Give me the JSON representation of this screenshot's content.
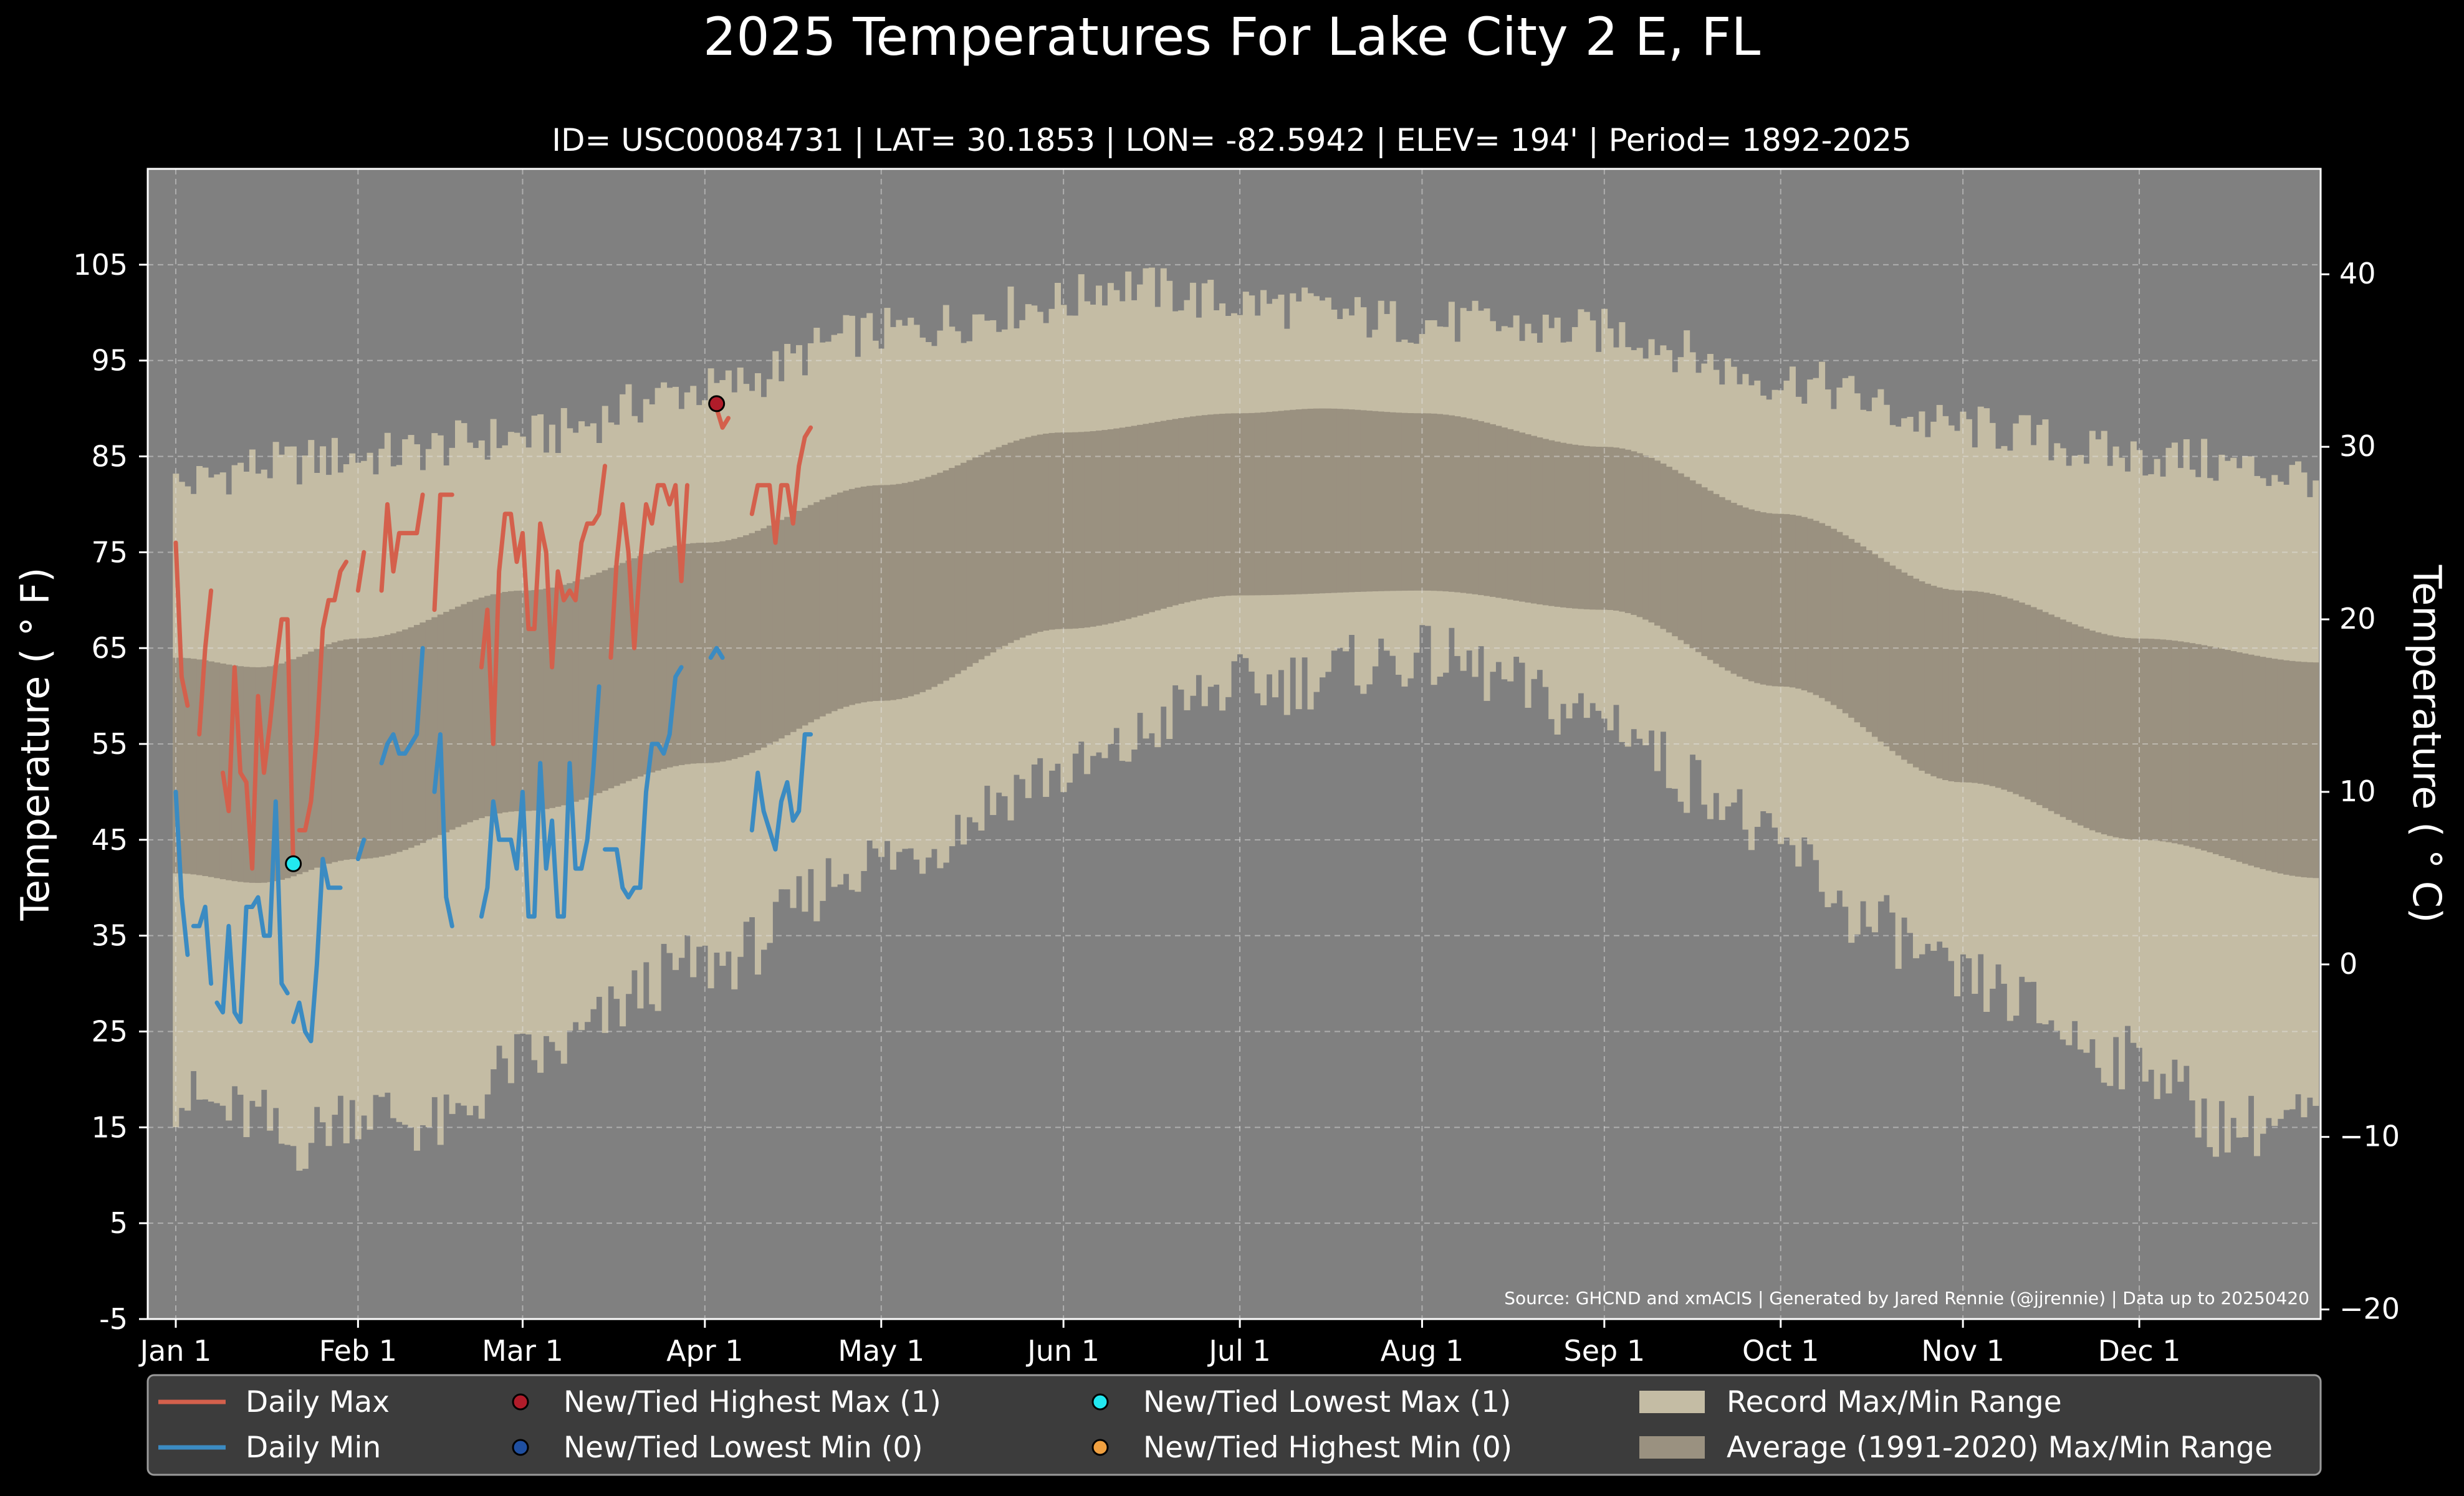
{
  "title": "2025 Temperatures For Lake City 2 E, FL",
  "subtitle": "ID= USC00084731 | LAT= 30.1853 | LON= -82.5942 | ELEV= 194' | Period= 1892-2025",
  "source_note": "Source: GHCND and xmACIS | Generated by Jared Rennie (@jjrennie) | Data up to 20250420",
  "colors": {
    "background": "#000000",
    "plot_bg": "#808080",
    "record_band": "#c4bca4",
    "normal_band": "#9a9180",
    "daily_max": "#d4604c",
    "daily_min": "#3b8bc2",
    "highest_max_marker": "#b01c2a",
    "lowest_min_marker": "#1f4fa0",
    "lowest_max_marker": "#22e8f0",
    "highest_min_marker": "#f0a040"
  },
  "chart_data": {
    "type": "line",
    "ylabel_left": "Temperature ($^\\circ$F)",
    "ylabel_right": "Temperature ($^\\circ$C)",
    "ylabel_left_display": "Temperature ( ° F)",
    "ylabel_right_display": "Temperature ( ° C)",
    "ylim_f": [
      -5,
      115
    ],
    "yticks_f": [
      "105",
      "95",
      "85",
      "75",
      "65",
      "55",
      "45",
      "35",
      "25",
      "15",
      "5",
      "-5"
    ],
    "yticks_c": [
      "40",
      "30",
      "20",
      "10",
      "0",
      "−10",
      "−20"
    ],
    "yticks_c_values": [
      40,
      30,
      20,
      10,
      0,
      -10,
      -20
    ],
    "xticks": [
      "Jan 1",
      "Feb 1",
      "Mar 1",
      "Apr 1",
      "May 1",
      "Jun 1",
      "Jul 1",
      "Aug 1",
      "Sep 1",
      "Oct 1",
      "Nov 1",
      "Dec 1"
    ],
    "xtick_days": [
      1,
      32,
      60,
      91,
      121,
      152,
      182,
      213,
      244,
      274,
      305,
      335
    ],
    "grid": true,
    "legend_placement": "bottom",
    "legend": [
      {
        "label": "Daily Max",
        "kind": "line",
        "color": "#d4604c"
      },
      {
        "label": "New/Tied Highest Max (1)",
        "kind": "marker",
        "color": "#b01c2a"
      },
      {
        "label": "New/Tied Lowest Max (1)",
        "kind": "marker",
        "color": "#22e8f0"
      },
      {
        "label": "Record Max/Min Range",
        "kind": "patch",
        "color": "#c4bca4"
      },
      {
        "label": "Daily Min",
        "kind": "line",
        "color": "#3b8bc2"
      },
      {
        "label": "New/Tied Lowest Min (0)",
        "kind": "marker",
        "color": "#1f4fa0"
      },
      {
        "label": "New/Tied Highest Min (0)",
        "kind": "marker",
        "color": "#f0a040"
      },
      {
        "label": "Average (1991-2020) Max/Min Range",
        "kind": "patch",
        "color": "#9a9180"
      }
    ],
    "normal_max_curve": [
      [
        1,
        64
      ],
      [
        15,
        63
      ],
      [
        32,
        66
      ],
      [
        60,
        71
      ],
      [
        91,
        76
      ],
      [
        121,
        82
      ],
      [
        152,
        87.5
      ],
      [
        182,
        89.5
      ],
      [
        196,
        90
      ],
      [
        213,
        89.5
      ],
      [
        244,
        86
      ],
      [
        274,
        79
      ],
      [
        305,
        71
      ],
      [
        335,
        66
      ],
      [
        366,
        63.5
      ]
    ],
    "normal_min_curve": [
      [
        1,
        41.5
      ],
      [
        15,
        40.5
      ],
      [
        32,
        43
      ],
      [
        60,
        48
      ],
      [
        91,
        53
      ],
      [
        121,
        59.5
      ],
      [
        152,
        67
      ],
      [
        182,
        70.5
      ],
      [
        213,
        71
      ],
      [
        244,
        69
      ],
      [
        274,
        61
      ],
      [
        305,
        51
      ],
      [
        335,
        45
      ],
      [
        366,
        41
      ]
    ],
    "record_max_curve": [
      [
        1,
        82
      ],
      [
        15,
        84
      ],
      [
        32,
        85
      ],
      [
        60,
        87
      ],
      [
        91,
        92
      ],
      [
        121,
        98
      ],
      [
        152,
        101
      ],
      [
        160,
        103
      ],
      [
        182,
        101
      ],
      [
        213,
        99
      ],
      [
        244,
        98
      ],
      [
        274,
        93
      ],
      [
        305,
        88
      ],
      [
        335,
        85
      ],
      [
        366,
        83
      ]
    ],
    "record_min_curve": [
      [
        1,
        18
      ],
      [
        15,
        16
      ],
      [
        20,
        13
      ],
      [
        32,
        17
      ],
      [
        46,
        15
      ],
      [
        60,
        22
      ],
      [
        91,
        32
      ],
      [
        121,
        43
      ],
      [
        152,
        52
      ],
      [
        182,
        61
      ],
      [
        213,
        64
      ],
      [
        244,
        58
      ],
      [
        260,
        51
      ],
      [
        274,
        44
      ],
      [
        290,
        36
      ],
      [
        305,
        30
      ],
      [
        335,
        22
      ],
      [
        350,
        15
      ],
      [
        366,
        16
      ]
    ],
    "series": [
      {
        "name": "Daily Max",
        "segments": [
          [
            [
              1,
              76
            ],
            [
              2,
              62
            ],
            [
              3,
              59
            ]
          ],
          [
            [
              5,
              56
            ],
            [
              6,
              65
            ],
            [
              7,
              71
            ]
          ],
          [
            [
              9,
              52
            ],
            [
              10,
              48
            ],
            [
              11,
              63
            ],
            [
              12,
              52
            ],
            [
              13,
              51
            ],
            [
              14,
              42
            ],
            [
              15,
              60
            ],
            [
              16,
              52
            ],
            [
              17,
              57
            ],
            [
              18,
              63
            ],
            [
              19,
              68
            ],
            [
              20,
              68
            ],
            [
              21,
              42
            ]
          ],
          [
            [
              22,
              46
            ],
            [
              23,
              46
            ],
            [
              24,
              49
            ],
            [
              25,
              56
            ],
            [
              26,
              67
            ],
            [
              27,
              70
            ],
            [
              28,
              70
            ],
            [
              29,
              73
            ],
            [
              30,
              74
            ]
          ],
          [
            [
              32,
              71
            ],
            [
              33,
              75
            ]
          ],
          [
            [
              36,
              71
            ],
            [
              37,
              80
            ],
            [
              38,
              73
            ],
            [
              39,
              77
            ],
            [
              40,
              77
            ],
            [
              41,
              77
            ],
            [
              42,
              77
            ],
            [
              43,
              81
            ]
          ],
          [
            [
              45,
              69
            ],
            [
              46,
              81
            ],
            [
              47,
              81
            ],
            [
              48,
              81
            ]
          ],
          [
            [
              53,
              63
            ],
            [
              54,
              69
            ],
            [
              55,
              55
            ],
            [
              56,
              73
            ],
            [
              57,
              79
            ],
            [
              58,
              79
            ],
            [
              59,
              74
            ],
            [
              60,
              77
            ],
            [
              61,
              67
            ],
            [
              62,
              67
            ],
            [
              63,
              78
            ],
            [
              64,
              75
            ],
            [
              65,
              63
            ],
            [
              66,
              73
            ],
            [
              67,
              70
            ],
            [
              68,
              71
            ],
            [
              69,
              70
            ],
            [
              70,
              76
            ],
            [
              71,
              78
            ],
            [
              72,
              78
            ],
            [
              73,
              79
            ],
            [
              74,
              84
            ]
          ],
          [
            [
              75,
              64
            ],
            [
              76,
              74
            ],
            [
              77,
              80
            ],
            [
              78,
              75
            ],
            [
              79,
              65
            ],
            [
              80,
              74
            ],
            [
              81,
              80
            ],
            [
              82,
              78
            ],
            [
              83,
              82
            ],
            [
              84,
              82
            ],
            [
              85,
              80
            ],
            [
              86,
              82
            ],
            [
              87,
              72
            ],
            [
              88,
              82
            ]
          ],
          [
            [
              93,
              90
            ],
            [
              94,
              88
            ],
            [
              95,
              89
            ]
          ],
          [
            [
              99,
              79
            ],
            [
              100,
              82
            ],
            [
              101,
              82
            ],
            [
              102,
              82
            ],
            [
              103,
              76
            ],
            [
              104,
              82
            ],
            [
              105,
              82
            ],
            [
              106,
              78
            ],
            [
              107,
              84
            ],
            [
              108,
              87
            ],
            [
              109,
              88
            ]
          ]
        ]
      },
      {
        "name": "Daily Min",
        "segments": [
          [
            [
              1,
              50
            ],
            [
              2,
              39
            ],
            [
              3,
              33
            ]
          ],
          [
            [
              4,
              36
            ],
            [
              5,
              36
            ],
            [
              6,
              38
            ],
            [
              7,
              30
            ]
          ],
          [
            [
              8,
              28
            ],
            [
              9,
              27
            ],
            [
              10,
              36
            ],
            [
              11,
              27
            ],
            [
              12,
              26
            ],
            [
              13,
              38
            ],
            [
              14,
              38
            ],
            [
              15,
              39
            ],
            [
              16,
              35
            ],
            [
              17,
              35
            ],
            [
              18,
              49
            ],
            [
              19,
              30
            ],
            [
              20,
              29
            ]
          ],
          [
            [
              21,
              26
            ],
            [
              22,
              28
            ],
            [
              23,
              25
            ],
            [
              24,
              24
            ],
            [
              25,
              32
            ],
            [
              26,
              43
            ],
            [
              27,
              40
            ],
            [
              28,
              40
            ],
            [
              29,
              40
            ]
          ],
          [
            [
              32,
              43
            ],
            [
              33,
              45
            ]
          ],
          [
            [
              36,
              53
            ],
            [
              37,
              55
            ],
            [
              38,
              56
            ],
            [
              39,
              54
            ],
            [
              40,
              54
            ],
            [
              41,
              55
            ],
            [
              42,
              56
            ],
            [
              43,
              65
            ]
          ],
          [
            [
              45,
              50
            ],
            [
              46,
              56
            ],
            [
              47,
              39
            ],
            [
              48,
              36
            ]
          ],
          [
            [
              53,
              37
            ],
            [
              54,
              40
            ],
            [
              55,
              49
            ],
            [
              56,
              45
            ],
            [
              57,
              45
            ],
            [
              58,
              45
            ],
            [
              59,
              42
            ],
            [
              60,
              50
            ],
            [
              61,
              37
            ],
            [
              62,
              37
            ],
            [
              63,
              53
            ],
            [
              64,
              42
            ],
            [
              65,
              47
            ],
            [
              66,
              37
            ],
            [
              67,
              37
            ],
            [
              68,
              53
            ],
            [
              69,
              42
            ],
            [
              70,
              42
            ],
            [
              71,
              45
            ],
            [
              72,
              52
            ],
            [
              73,
              61
            ]
          ],
          [
            [
              74,
              44
            ],
            [
              75,
              44
            ],
            [
              76,
              44
            ],
            [
              77,
              40
            ],
            [
              78,
              39
            ],
            [
              79,
              40
            ],
            [
              80,
              40
            ],
            [
              81,
              50
            ],
            [
              82,
              55
            ],
            [
              83,
              55
            ],
            [
              84,
              54
            ],
            [
              85,
              56
            ],
            [
              86,
              62
            ],
            [
              87,
              63
            ]
          ],
          [
            [
              92,
              64
            ],
            [
              93,
              65
            ],
            [
              94,
              64
            ]
          ],
          [
            [
              99,
              46
            ],
            [
              100,
              52
            ],
            [
              101,
              48
            ],
            [
              102,
              46
            ],
            [
              103,
              44
            ],
            [
              104,
              49
            ],
            [
              105,
              51
            ],
            [
              106,
              47
            ],
            [
              107,
              48
            ],
            [
              108,
              56
            ],
            [
              109,
              56
            ]
          ]
        ]
      }
    ],
    "records": [
      {
        "label": "New/Tied Highest Max",
        "day": 93,
        "value": 90.5,
        "color": "#b01c2a"
      },
      {
        "label": "New/Tied Lowest Max",
        "day": 21,
        "value": 42.5,
        "color": "#22e8f0"
      }
    ]
  }
}
